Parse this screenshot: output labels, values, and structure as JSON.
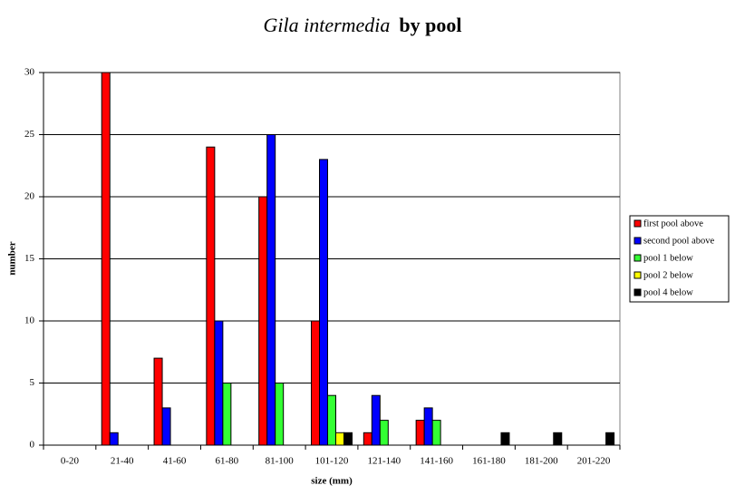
{
  "chart_data": {
    "type": "bar",
    "title": {
      "species": "Gila intermedia",
      "rest": "by pool"
    },
    "x_label": "size (mm)",
    "y_label": "number",
    "categories": [
      "0-20",
      "21-40",
      "41-60",
      "61-80",
      "81-100",
      "101-120",
      "121-140",
      "141-160",
      "161-180",
      "181-200",
      "201-220"
    ],
    "series": [
      {
        "name": "first pool above",
        "color": "#ff0000",
        "values": [
          0,
          30,
          7,
          24,
          20,
          10,
          1,
          2,
          0,
          0,
          0
        ]
      },
      {
        "name": "second pool above",
        "color": "#0000ff",
        "values": [
          0,
          1,
          3,
          10,
          25,
          23,
          4,
          3,
          0,
          0,
          0
        ]
      },
      {
        "name": "pool 1 below",
        "color": "#33ff33",
        "values": [
          0,
          0,
          0,
          5,
          5,
          4,
          2,
          2,
          0,
          0,
          0
        ]
      },
      {
        "name": "pool 2 below",
        "color": "#ffff00",
        "values": [
          0,
          0,
          0,
          0,
          0,
          1,
          0,
          0,
          0,
          0,
          0
        ]
      },
      {
        "name": "pool 4 below",
        "color": "#000000",
        "values": [
          0,
          0,
          0,
          0,
          0,
          1,
          0,
          0,
          1,
          1,
          1
        ]
      }
    ],
    "ylim": [
      0,
      30
    ],
    "yticks": [
      0,
      5,
      10,
      15,
      20,
      25,
      30
    ],
    "grid": true,
    "legend": "right"
  }
}
